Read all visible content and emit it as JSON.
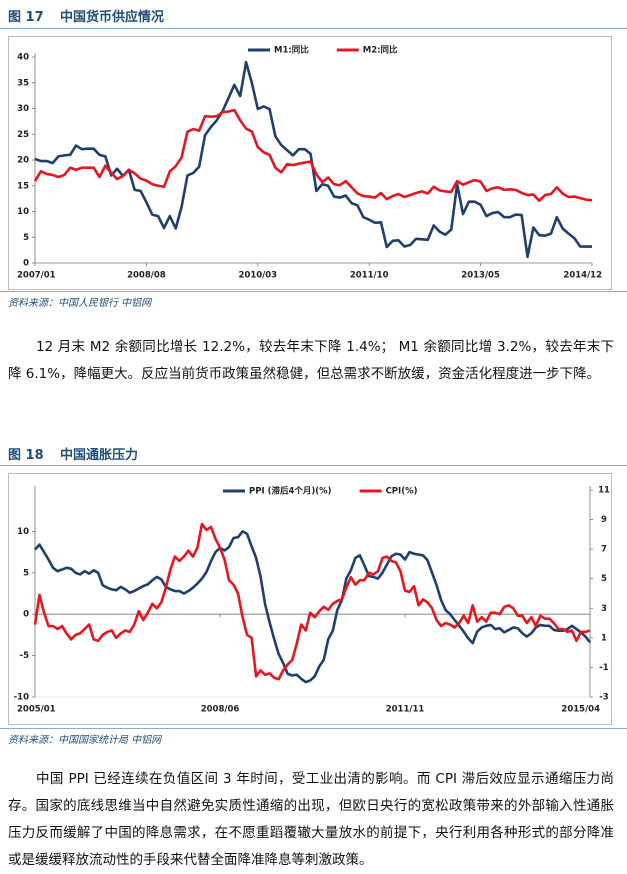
{
  "chart_data": [
    {
      "type": "line",
      "label": "图 17",
      "title": "中国货币供应情况",
      "source": "资料来源：中国人民银行    中铝网",
      "categories": [
        "2007/01",
        null,
        null,
        null,
        null,
        null,
        null,
        null,
        null,
        null,
        null,
        null,
        null,
        null,
        null,
        null,
        null,
        null,
        null,
        "2008/08",
        null,
        null,
        null,
        null,
        null,
        null,
        null,
        null,
        null,
        null,
        null,
        null,
        null,
        null,
        null,
        null,
        null,
        null,
        "2010/03",
        null,
        null,
        null,
        null,
        null,
        null,
        null,
        null,
        null,
        null,
        null,
        null,
        null,
        null,
        null,
        null,
        null,
        null,
        "2011/10",
        null,
        null,
        null,
        null,
        null,
        null,
        null,
        null,
        null,
        null,
        null,
        null,
        null,
        null,
        null,
        null,
        null,
        null,
        "2013/05",
        null,
        null,
        null,
        null,
        null,
        null,
        null,
        null,
        null,
        null,
        null,
        null,
        null,
        null,
        null,
        null,
        null,
        null,
        "2014/12"
      ],
      "ylim": [
        0,
        40
      ],
      "yticks": [
        0,
        5,
        10,
        15,
        20,
        25,
        30,
        35,
        40
      ],
      "series": [
        {
          "name": "M1:同比",
          "color": "#1f3f6e",
          "values": [
            20.2,
            19.8,
            19.8,
            19.4,
            20.7,
            20.9,
            21.0,
            22.8,
            22.1,
            22.2,
            22.2,
            21.0,
            20.7,
            17.0,
            18.3,
            16.9,
            18.1,
            14.2,
            14.0,
            11.8,
            9.4,
            9.1,
            6.8,
            9.1,
            6.7,
            10.9,
            17.0,
            17.5,
            18.7,
            24.8,
            26.4,
            27.7,
            29.5,
            32.0,
            34.6,
            32.4,
            39.0,
            34.9,
            29.9,
            30.4,
            29.9,
            24.6,
            22.9,
            21.9,
            20.9,
            22.1,
            22.1,
            21.2,
            14.0,
            15.3,
            15.0,
            12.9,
            12.7,
            13.1,
            11.6,
            11.2,
            8.9,
            8.4,
            7.8,
            7.9,
            3.1,
            4.3,
            4.4,
            3.2,
            3.5,
            4.7,
            4.6,
            4.5,
            7.3,
            6.1,
            5.5,
            6.5,
            15.3,
            9.5,
            11.9,
            11.9,
            11.3,
            9.1,
            9.7,
            9.9,
            8.9,
            8.9,
            9.4,
            9.3,
            1.2,
            6.9,
            5.4,
            5.3,
            5.7,
            8.9,
            6.7,
            5.7,
            4.8,
            3.2,
            3.2,
            3.2
          ]
        },
        {
          "name": "M2:同比",
          "color": "#e8141e",
          "values": [
            15.9,
            17.8,
            17.3,
            17.1,
            16.7,
            17.1,
            18.5,
            18.1,
            18.5,
            18.5,
            18.5,
            16.7,
            18.9,
            17.5,
            16.3,
            16.9,
            18.1,
            17.4,
            16.4,
            16.0,
            15.3,
            15.0,
            14.8,
            17.8,
            18.8,
            20.5,
            25.5,
            26.0,
            25.7,
            28.5,
            28.4,
            28.5,
            29.3,
            29.4,
            29.7,
            27.7,
            26.1,
            25.5,
            22.5,
            21.5,
            21.0,
            18.5,
            17.6,
            19.2,
            19.0,
            19.3,
            19.5,
            19.7,
            17.2,
            15.7,
            16.6,
            15.3,
            15.1,
            15.9,
            14.7,
            13.5,
            13.0,
            12.9,
            12.7,
            13.6,
            12.4,
            13.0,
            13.4,
            12.8,
            13.2,
            13.6,
            13.9,
            13.5,
            14.8,
            14.1,
            13.9,
            13.8,
            15.9,
            15.2,
            15.7,
            16.1,
            15.8,
            14.0,
            14.5,
            14.7,
            14.2,
            14.3,
            14.2,
            13.6,
            13.2,
            13.3,
            12.1,
            13.2,
            13.4,
            14.7,
            13.5,
            12.8,
            12.9,
            12.6,
            12.3,
            12.2
          ]
        }
      ]
    },
    {
      "type": "line",
      "label": "图 18",
      "title": "中国通胀压力",
      "source": "资料来源：中国国家统计局    中铝网",
      "categories": [
        "2005/01",
        null,
        null,
        null,
        null,
        null,
        null,
        null,
        null,
        null,
        null,
        null,
        null,
        null,
        null,
        null,
        null,
        null,
        null,
        null,
        null,
        null,
        null,
        null,
        null,
        null,
        null,
        null,
        null,
        null,
        null,
        null,
        null,
        null,
        null,
        null,
        null,
        null,
        null,
        null,
        null,
        "2008/06",
        null,
        null,
        null,
        null,
        null,
        null,
        null,
        null,
        null,
        null,
        null,
        null,
        null,
        null,
        null,
        null,
        null,
        null,
        null,
        null,
        null,
        null,
        null,
        null,
        null,
        null,
        null,
        null,
        null,
        null,
        null,
        null,
        null,
        null,
        null,
        null,
        null,
        null,
        null,
        null,
        "2011/11",
        null,
        null,
        null,
        null,
        null,
        null,
        null,
        null,
        null,
        null,
        null,
        null,
        null,
        null,
        null,
        null,
        null,
        null,
        null,
        null,
        null,
        null,
        null,
        null,
        null,
        null,
        null,
        null,
        null,
        null,
        null,
        null,
        null,
        null,
        null,
        null,
        null,
        null,
        null,
        null,
        "2015/04"
      ],
      "ylim": [
        -10,
        15
      ],
      "yticks": [
        -10,
        -5,
        0,
        5,
        10
      ],
      "y2lim": [
        -3,
        11
      ],
      "y2ticks": [
        -3,
        -1,
        1,
        3,
        5,
        7,
        9,
        11
      ],
      "series": [
        {
          "name": "PPI (滞后4个月)(%)",
          "color": "#1f3f6e",
          "values": [
            7.8,
            8.4,
            7.5,
            6.6,
            5.6,
            5.2,
            5.4,
            5.6,
            5.5,
            5.0,
            4.8,
            5.2,
            4.9,
            5.3,
            5.0,
            3.5,
            3.2,
            3.0,
            2.9,
            3.3,
            3.0,
            2.6,
            2.8,
            3.1,
            3.4,
            3.6,
            4.1,
            4.5,
            4.2,
            3.3,
            3.0,
            2.8,
            2.8,
            2.5,
            2.8,
            3.2,
            3.7,
            4.3,
            5.1,
            6.4,
            7.5,
            8.0,
            7.7,
            8.1,
            9.2,
            9.3,
            10.0,
            9.7,
            8.2,
            6.8,
            4.5,
            1.2,
            -1.0,
            -3.0,
            -4.8,
            -5.9,
            -7.2,
            -7.4,
            -7.3,
            -7.8,
            -8.2,
            -8.0,
            -7.5,
            -6.3,
            -5.5,
            -3.0,
            -2.0,
            0.5,
            1.7,
            4.3,
            5.3,
            6.8,
            7.1,
            5.9,
            4.6,
            4.5,
            4.3,
            5.0,
            6.0,
            7.0,
            7.3,
            7.2,
            6.6,
            7.5,
            7.3,
            7.2,
            7.1,
            6.5,
            5.0,
            3.5,
            1.7,
            0.5,
            0.0,
            -0.7,
            -1.4,
            -2.1,
            -2.9,
            -3.5,
            -2.1,
            -1.6,
            -1.4,
            -1.3,
            -1.8,
            -1.7,
            -2.2,
            -1.9,
            -1.6,
            -1.7,
            -2.3,
            -2.7,
            -2.3,
            -1.6,
            -1.3,
            -1.4,
            -1.4,
            -1.9,
            -2.0,
            -2.0,
            -1.8,
            -1.4,
            -1.8,
            -2.2,
            -2.7,
            -3.4
          ]
        },
        {
          "name": "CPI(%)",
          "color": "#e8141e",
          "axis": "y2",
          "values": [
            1.9,
            3.9,
            2.7,
            1.8,
            1.8,
            1.6,
            1.8,
            1.3,
            0.9,
            1.2,
            1.3,
            1.6,
            1.9,
            0.9,
            0.8,
            1.2,
            1.4,
            1.5,
            1.0,
            1.3,
            1.5,
            1.4,
            1.9,
            2.8,
            2.2,
            2.7,
            3.3,
            3.0,
            3.4,
            4.4,
            5.6,
            6.5,
            6.2,
            6.5,
            6.9,
            6.5,
            7.1,
            8.7,
            8.3,
            8.5,
            7.7,
            7.1,
            6.3,
            4.9,
            4.6,
            4.0,
            2.4,
            1.2,
            1.0,
            -1.6,
            -1.2,
            -1.5,
            -1.4,
            -1.7,
            -1.8,
            -1.2,
            -0.8,
            -0.5,
            0.6,
            1.9,
            1.5,
            2.7,
            2.4,
            2.8,
            3.1,
            2.9,
            3.3,
            3.5,
            3.6,
            4.4,
            5.1,
            4.6,
            4.9,
            4.9,
            5.4,
            5.3,
            5.5,
            6.4,
            6.5,
            6.2,
            6.1,
            5.5,
            4.2,
            4.1,
            4.5,
            3.2,
            3.6,
            3.4,
            3.0,
            2.2,
            1.8,
            2.0,
            1.9,
            1.7,
            2.0,
            2.5,
            2.0,
            3.2,
            2.1,
            2.4,
            2.1,
            2.7,
            2.7,
            2.6,
            3.1,
            3.2,
            3.0,
            2.5,
            2.5,
            2.0,
            2.4,
            1.8,
            2.5,
            2.3,
            2.3,
            2.0,
            1.6,
            1.6,
            1.4,
            1.5,
            0.8,
            1.4,
            1.4,
            1.5
          ]
        }
      ]
    }
  ],
  "paragraphs": [
    "12 月末  M2 余额同比增长  12.2%，较去年末下降  1.4%；   M1 余额同比增 3.2%，较去年末下降  6.1%，降幅更大。反应当前货币政策虽然稳健，但总需求不断放缓，资金活化程度进一步下降。",
    "中国 PPI 已经连续在负值区间 3 年时间，受工业出清的影响。而 CPI 滞后效应显示通缩压力尚存。国家的底线思维当中自然避免实质性通缩的出现，但欧日央行的宽松政策带来的外部输入性通胀压力反而缓解了中国的降息需求，在不愿重蹈覆辙大量放水的前提下，央行利用各种形式的部分降准或是缓缓释放流动性的手段来代替全面降准降息等刺激政策。"
  ]
}
